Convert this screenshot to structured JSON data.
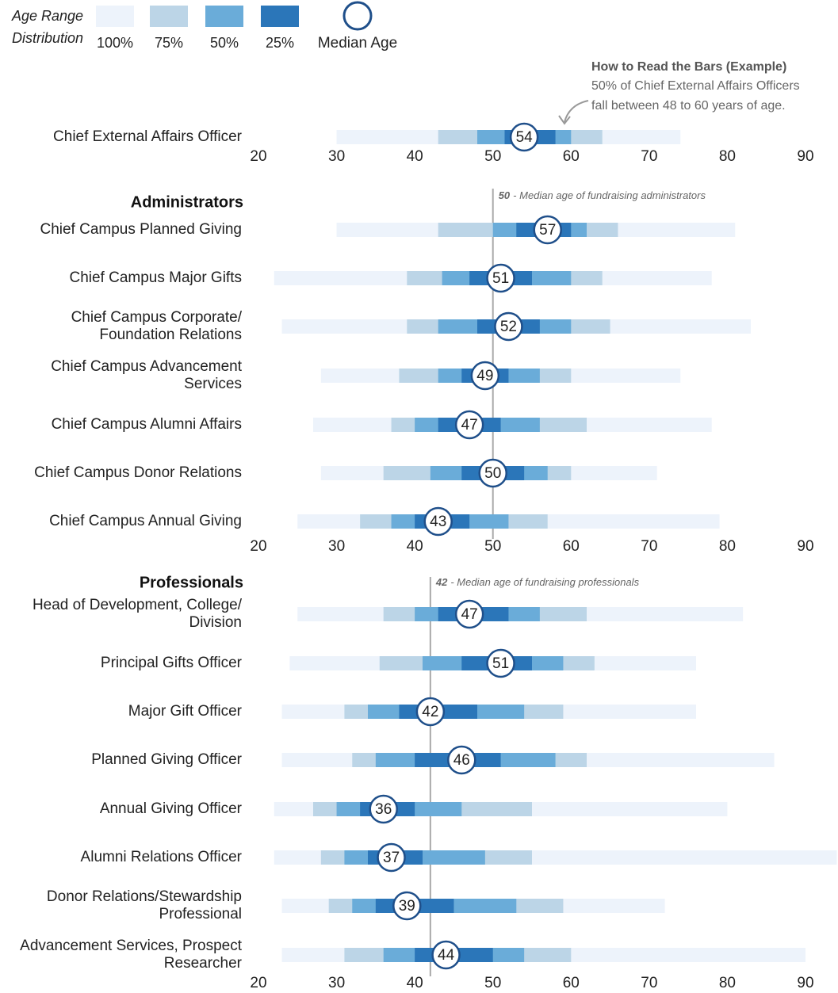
{
  "chart_data": {
    "type": "range",
    "legend": {
      "title": [
        "Age Range",
        "Distribution"
      ],
      "median_label": "Median Age"
    },
    "series": [
      {
        "name": "100%",
        "color": "#edf3fb"
      },
      {
        "name": "75%",
        "color": "#bcd5e7"
      },
      {
        "name": "50%",
        "color": "#6aacd9"
      },
      {
        "name": "25%",
        "color": "#2b76b9"
      }
    ],
    "median_color": "#1f4f8a",
    "note": {
      "title": "How to Read the Bars (Example)",
      "lines": [
        "50% of Chief External Affairs Officers",
        "fall between 48 to 60 years of age."
      ]
    },
    "xlim": [
      20,
      90
    ],
    "xticks": [
      20,
      30,
      40,
      50,
      60,
      70,
      80,
      90
    ],
    "groups": [
      {
        "rows": [
          {
            "label": "Chief External Affairs Officer",
            "ranges": [
              [
                30,
                74
              ],
              [
                43,
                64
              ],
              [
                48,
                60
              ],
              [
                51.5,
                58
              ]
            ],
            "median": 54
          }
        ]
      },
      {
        "title": "Administrators",
        "median": {
          "value": 50,
          "label": "- Median age of fundraising administrators"
        },
        "rows": [
          {
            "label": "Chief Campus Planned Giving",
            "ranges": [
              [
                30,
                81
              ],
              [
                43,
                66
              ],
              [
                50,
                62
              ],
              [
                53,
                60
              ]
            ],
            "median": 57
          },
          {
            "label": "Chief Campus Major Gifts",
            "ranges": [
              [
                22,
                78
              ],
              [
                39,
                64
              ],
              [
                43.5,
                60
              ],
              [
                47,
                55
              ]
            ],
            "median": 51
          },
          {
            "label": "Chief Campus Corporate/\nFoundation Relations",
            "ranges": [
              [
                23,
                83
              ],
              [
                39,
                65
              ],
              [
                43,
                60
              ],
              [
                48,
                56
              ]
            ],
            "median": 52
          },
          {
            "label": "Chief Campus Advancement\nServices",
            "ranges": [
              [
                28,
                74
              ],
              [
                38,
                60
              ],
              [
                43,
                56
              ],
              [
                46,
                52
              ]
            ],
            "median": 49
          },
          {
            "label": "Chief Campus Alumni Affairs",
            "ranges": [
              [
                27,
                78
              ],
              [
                37,
                62
              ],
              [
                40,
                56
              ],
              [
                43,
                51
              ]
            ],
            "median": 47
          },
          {
            "label": "Chief Campus Donor Relations",
            "ranges": [
              [
                28,
                71
              ],
              [
                36,
                60
              ],
              [
                42,
                57
              ],
              [
                46,
                54
              ]
            ],
            "median": 50
          },
          {
            "label": "Chief Campus Annual Giving",
            "ranges": [
              [
                25,
                79
              ],
              [
                33,
                57
              ],
              [
                37,
                52
              ],
              [
                40,
                47
              ]
            ],
            "median": 43
          }
        ]
      },
      {
        "title": "Professionals",
        "median": {
          "value": 42,
          "label": "- Median age of fundraising professionals"
        },
        "rows": [
          {
            "label": "Head of Development, College/\nDivision",
            "ranges": [
              [
                25,
                82
              ],
              [
                36,
                62
              ],
              [
                40,
                56
              ],
              [
                43,
                52
              ]
            ],
            "median": 47
          },
          {
            "label": "Principal Gifts Officer",
            "ranges": [
              [
                24,
                76
              ],
              [
                35.5,
                63
              ],
              [
                41,
                59
              ],
              [
                46,
                55
              ]
            ],
            "median": 51
          },
          {
            "label": "Major Gift Officer",
            "ranges": [
              [
                23,
                76
              ],
              [
                31,
                59
              ],
              [
                34,
                54
              ],
              [
                38,
                48
              ]
            ],
            "median": 42
          },
          {
            "label": "Planned Giving Officer",
            "ranges": [
              [
                23,
                86
              ],
              [
                32,
                62
              ],
              [
                35,
                58
              ],
              [
                40,
                51
              ]
            ],
            "median": 46
          },
          {
            "label": "Annual Giving Officer",
            "ranges": [
              [
                22,
                80
              ],
              [
                27,
                55
              ],
              [
                30,
                46
              ],
              [
                33,
                40
              ]
            ],
            "median": 36
          },
          {
            "label": "Alumni Relations Officer",
            "ranges": [
              [
                22,
                94
              ],
              [
                28,
                55
              ],
              [
                31,
                49
              ],
              [
                34,
                41
              ]
            ],
            "median": 37
          },
          {
            "label": "Donor Relations/Stewardship\nProfessional",
            "ranges": [
              [
                23,
                72
              ],
              [
                29,
                59
              ],
              [
                32,
                53
              ],
              [
                35,
                45
              ]
            ],
            "median": 39
          },
          {
            "label": "Advancement Services, Prospect\nResearcher",
            "ranges": [
              [
                23,
                90
              ],
              [
                31,
                60
              ],
              [
                36,
                54
              ],
              [
                40,
                50
              ]
            ],
            "median": 44
          }
        ]
      }
    ]
  }
}
